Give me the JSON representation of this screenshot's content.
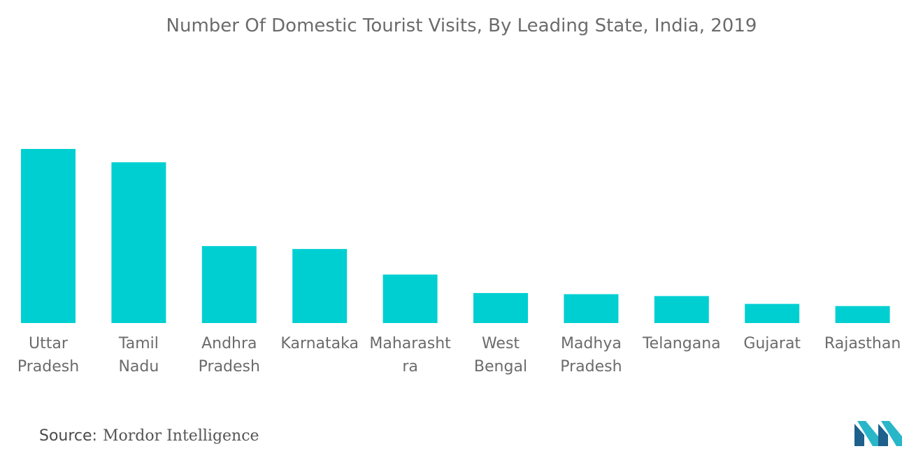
{
  "chart_data": {
    "type": "bar",
    "title": "Number Of Domestic Tourist Visits, By Leading State, India, 2019",
    "categories": [
      [
        "Uttar",
        "Pradesh"
      ],
      [
        "Tamil",
        "Nadu"
      ],
      [
        "Andhra",
        "Pradesh"
      ],
      [
        "Karnataka"
      ],
      [
        "Maharasht",
        "ra"
      ],
      [
        "West",
        "Bengal"
      ],
      [
        "Madhya",
        "Pradesh"
      ],
      [
        "Telangana"
      ],
      [
        "Gujarat"
      ],
      [
        "Rajasthan"
      ]
    ],
    "values": [
      535.8,
      494.8,
      237.0,
      227.9,
      149.3,
      92.4,
      88.9,
      83.0,
      58.9,
      52.2
    ],
    "ylim": [
      0,
      540
    ],
    "bar_color": "#00cfd1",
    "grid": false,
    "legend": "none"
  },
  "source": {
    "label": "Source:",
    "value": "Mordor Intelligence"
  },
  "logo": {
    "icon": "mordor-intelligence-logo-icon",
    "colors": [
      "#1e5f8c",
      "#29b6c9"
    ]
  }
}
